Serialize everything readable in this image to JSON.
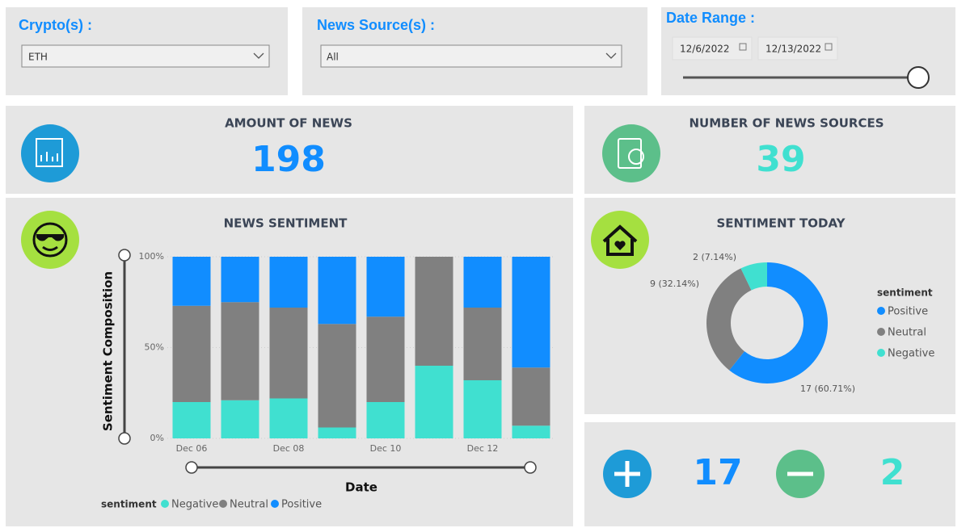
{
  "filters": {
    "crypto": {
      "label": "Crypto(s) :",
      "selected": "ETH"
    },
    "news_source": {
      "label": "News Source(s) :",
      "selected": "All"
    },
    "date_range": {
      "label": "Date Range :",
      "start": "12/6/2022",
      "end": "12/13/2022"
    }
  },
  "kpis": {
    "amount_of_news": {
      "title": "AMOUNT OF NEWS",
      "value": 198
    },
    "number_of_news_sources": {
      "title": "NUMBER OF NEWS SOURCES",
      "value": 39
    },
    "positive": {
      "value": 17
    },
    "negative": {
      "value": 2
    }
  },
  "chart_data": [
    {
      "type": "bar",
      "stacked": true,
      "title": "NEWS SENTIMENT",
      "x_label": "Date",
      "y_label": "Sentiment Composition",
      "legend_title": "sentiment",
      "categories": [
        "Dec 06",
        null,
        "Dec 08",
        null,
        "Dec 10",
        null,
        "Dec 12",
        null
      ],
      "series": [
        {
          "name": "Negative",
          "color": "#40e0d0",
          "values": [
            20,
            21,
            22,
            6,
            20,
            40,
            32,
            7
          ]
        },
        {
          "name": "Neutral",
          "color": "#808080",
          "values": [
            53,
            54,
            50,
            57,
            47,
            60,
            40,
            32
          ]
        },
        {
          "name": "Positive",
          "color": "#118dff",
          "values": [
            27,
            25,
            28,
            37,
            33,
            0,
            28,
            61
          ]
        }
      ],
      "ylim": [
        0,
        100
      ],
      "yticks": [
        {
          "value": 0,
          "label": "0%"
        },
        {
          "value": 50,
          "label": "50%"
        },
        {
          "value": 100,
          "label": "100%"
        }
      ],
      "grid": true
    },
    {
      "type": "donut",
      "title": "SENTIMENT TODAY",
      "legend_title": "sentiment",
      "categories": [
        "Positive",
        "Neutral",
        "Negative"
      ],
      "values": [
        17,
        9,
        2
      ],
      "value_labels": [
        "17 (60.71%)",
        "9 (32.14%)",
        "2 (7.14%)"
      ],
      "colors": [
        "#118dff",
        "#808080",
        "#40e0d0"
      ]
    }
  ]
}
